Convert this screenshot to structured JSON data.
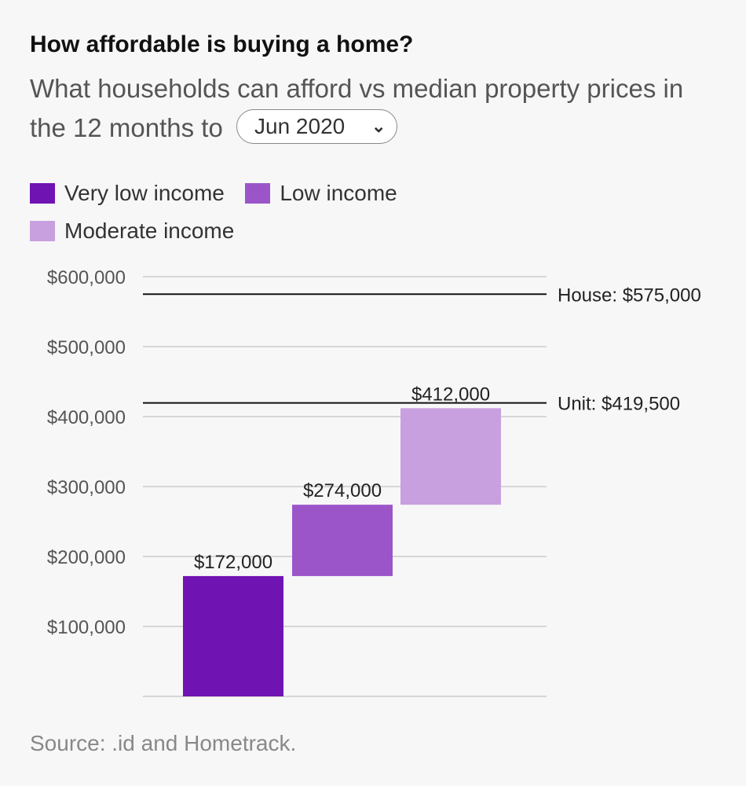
{
  "header": {
    "title": "How affordable is buying a home?",
    "subtitle_prefix": "What households can afford vs median property prices in the 12 months to",
    "selected_period": "Jun 2020",
    "dropdown_icon": "chevron-down-icon"
  },
  "legend": [
    {
      "label": "Very low income",
      "color": "#7013b3"
    },
    {
      "label": "Low income",
      "color": "#9c55c9"
    },
    {
      "label": "Moderate income",
      "color": "#c8a0e0"
    }
  ],
  "chart_data": {
    "type": "bar",
    "subtype": "floating-waterfall",
    "categories": [
      "Very low income",
      "Low income",
      "Moderate income"
    ],
    "bars": [
      {
        "category": "Very low income",
        "start": 0,
        "end": 172000,
        "label": "$172,000",
        "color": "#7013b3"
      },
      {
        "category": "Low income",
        "start": 172000,
        "end": 274000,
        "label": "$274,000",
        "color": "#9c55c9"
      },
      {
        "category": "Moderate income",
        "start": 274000,
        "end": 412000,
        "label": "$412,000",
        "color": "#c8a0e0"
      }
    ],
    "reference_lines": [
      {
        "label": "House: $575,000",
        "value": 575000
      },
      {
        "label": "Unit: $419,500",
        "value": 419500
      }
    ],
    "yticks": [
      {
        "value": 600000,
        "label": "$600,000"
      },
      {
        "value": 500000,
        "label": "$500,000"
      },
      {
        "value": 400000,
        "label": "$400,000"
      },
      {
        "value": 300000,
        "label": "$300,000"
      },
      {
        "value": 200000,
        "label": "$200,000"
      },
      {
        "value": 100000,
        "label": "$100,000"
      }
    ],
    "ylim": [
      0,
      600000
    ],
    "grid": true,
    "legend_position": "top"
  },
  "footer": {
    "source": "Source: .id and Hometrack."
  }
}
